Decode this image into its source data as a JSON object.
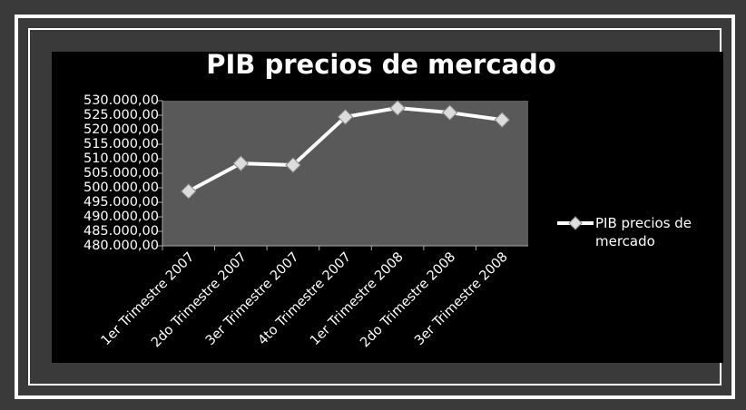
{
  "chart_data": {
    "type": "line",
    "title": "PIB precios de mercado",
    "categories": [
      "1er Trimestre 2007",
      "2do Trimestre 2007",
      "3er Trimestre 2007",
      "4to Trimestre 2007",
      "1er Trimestre 2008",
      "2do Trimestre 2008",
      "3er Trimestre 2008"
    ],
    "series": [
      {
        "name": "PIB precios de mercado",
        "color": "#ffffff",
        "values": [
          498800,
          508400,
          507800,
          524400,
          527500,
          525900,
          523400
        ]
      }
    ],
    "ylim": [
      480000,
      530000
    ],
    "yticks": [
      {
        "value": 480000,
        "label": "480.000,00"
      },
      {
        "value": 485000,
        "label": "485.000,00"
      },
      {
        "value": 490000,
        "label": "490.000,00"
      },
      {
        "value": 495000,
        "label": "495.000,00"
      },
      {
        "value": 500000,
        "label": "500.000,00"
      },
      {
        "value": 505000,
        "label": "505.000,00"
      },
      {
        "value": 510000,
        "label": "510.000,00"
      },
      {
        "value": 515000,
        "label": "515.000,00"
      },
      {
        "value": 520000,
        "label": "520.000,00"
      },
      {
        "value": 525000,
        "label": "525.000,00"
      },
      {
        "value": 530000,
        "label": "530.000,00"
      }
    ],
    "grid": false,
    "legend": "right"
  }
}
